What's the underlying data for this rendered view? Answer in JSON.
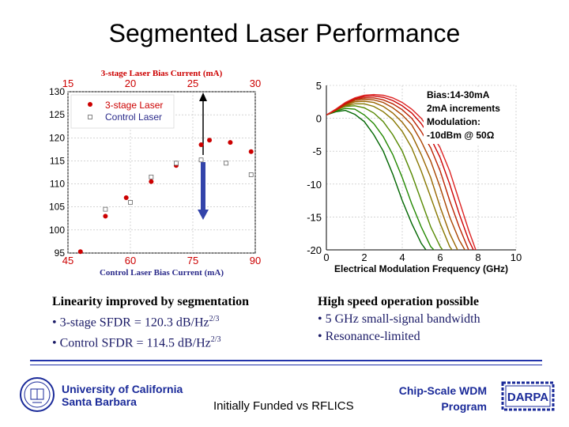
{
  "title": "Segmented Laser Performance",
  "left_text": {
    "heading": "Linearity improved by segmentation",
    "bullet1": "• 3-stage SFDR = 120.3 dB/Hz",
    "bullet1_sup": "2/3",
    "bullet2": "• Control SFDR = 114.5 dB/Hz",
    "bullet2_sup": "2/3"
  },
  "right_text": {
    "heading": "High speed operation possible",
    "bullet1": "• 5 GHz small-signal bandwidth",
    "bullet2": "• Resonance-limited"
  },
  "footer": {
    "left_line1": "University of California",
    "left_line2": "Santa Barbara",
    "center": "Initially Funded vs RFLICS",
    "right_line1": "Chip-Scale WDM",
    "right_line2": "Program",
    "logo_text": "DARPA"
  },
  "colors": {
    "marker": "#cc0000",
    "axis_text_red": "#cc0000",
    "footer_blue": "#1a2a99",
    "curve_colors": [
      "#006600",
      "#228800",
      "#558800",
      "#887700",
      "#996600",
      "#aa4400",
      "#bb2200",
      "#cc0000",
      "#dd2222"
    ]
  },
  "chart_data": [
    {
      "type": "scatter",
      "title": "3-stage Laser Bias Current (mA)",
      "xlabel": "Control Laser Bias Current (mA)",
      "ylabel": "",
      "xlim": [
        45,
        90
      ],
      "ylim": [
        95,
        130
      ],
      "x_ticks": [
        45,
        60,
        75,
        90
      ],
      "top_xlim": [
        15,
        30
      ],
      "top_x_ticks": [
        15,
        20,
        25,
        30
      ],
      "y_ticks": [
        95,
        100,
        105,
        110,
        115,
        120,
        125,
        130
      ],
      "grid": true,
      "legend_position": "top-left",
      "series": [
        {
          "name": "3-stage Laser",
          "marker": "filled-circle",
          "x": [
            48,
            54,
            59,
            65,
            71,
            77,
            79,
            84,
            89
          ],
          "y": [
            95.3,
            103,
            107,
            110.5,
            114,
            118.5,
            119.5,
            119,
            117
          ]
        },
        {
          "name": "Control Laser",
          "marker": "open-square",
          "x": [
            54,
            60,
            65,
            71,
            77,
            83,
            89
          ],
          "y": [
            104.5,
            106,
            111.5,
            114.5,
            115.2,
            114.5,
            112
          ]
        }
      ]
    },
    {
      "type": "line",
      "title": "",
      "xlabel": "Electrical Modulation Frequency (GHz)",
      "ylabel": "",
      "xlim": [
        0,
        10
      ],
      "ylim": [
        -20,
        5
      ],
      "x_ticks": [
        0,
        2,
        4,
        6,
        8,
        10
      ],
      "y_ticks": [
        5,
        0,
        -5,
        -10,
        -15,
        -20
      ],
      "grid": true,
      "legend_position": "top-right",
      "annotation": [
        "Bias:14-30mA",
        "2mA increments",
        "Modulation:",
        "-10dBm @ 50Ω"
      ],
      "series": [
        {
          "x": [
            0,
            0.5,
            1,
            1.5,
            2,
            2.5,
            3,
            3.5,
            4,
            4.5,
            5,
            5.5,
            6
          ],
          "y": [
            0.5,
            1.0,
            1.2,
            0.6,
            -0.5,
            -2.5,
            -5,
            -8.5,
            -12.5,
            -16,
            -19,
            -21,
            -22
          ]
        },
        {
          "x": [
            0,
            0.5,
            1,
            1.5,
            2,
            2.5,
            3,
            3.5,
            4,
            4.5,
            5,
            5.5,
            6,
            6.5
          ],
          "y": [
            0.5,
            1.1,
            1.5,
            1.4,
            0.5,
            -0.8,
            -2.8,
            -5.5,
            -9,
            -13,
            -16.5,
            -19.5,
            -21,
            -22
          ]
        },
        {
          "x": [
            0,
            0.5,
            1,
            1.5,
            2,
            2.5,
            3,
            3.5,
            4,
            4.5,
            5,
            5.5,
            6,
            6.5,
            7
          ],
          "y": [
            0.5,
            1.2,
            1.8,
            1.9,
            1.6,
            0.8,
            -0.5,
            -2.5,
            -5,
            -8.5,
            -12.5,
            -16.5,
            -19.5,
            -21.5,
            -22
          ]
        },
        {
          "x": [
            0,
            0.5,
            1,
            1.5,
            2,
            2.5,
            3,
            3.5,
            4,
            4.5,
            5,
            5.5,
            6,
            6.5,
            7,
            7.5
          ],
          "y": [
            0.5,
            1.2,
            1.9,
            2.2,
            2.2,
            1.8,
            1.0,
            -0.2,
            -2,
            -4.5,
            -8,
            -12,
            -16,
            -19.5,
            -21.5,
            -22
          ]
        },
        {
          "x": [
            0,
            0.5,
            1,
            1.5,
            2,
            2.5,
            3,
            3.5,
            4,
            4.5,
            5,
            5.5,
            6,
            6.5,
            7,
            7.5
          ],
          "y": [
            0.5,
            1.2,
            2.0,
            2.5,
            2.6,
            2.4,
            1.8,
            0.8,
            -0.6,
            -2.5,
            -5.5,
            -9,
            -13.5,
            -17.5,
            -20.5,
            -22
          ]
        },
        {
          "x": [
            0,
            0.5,
            1,
            1.5,
            2,
            2.5,
            3,
            3.5,
            4,
            4.5,
            5,
            5.5,
            6,
            6.5,
            7,
            7.5,
            8
          ],
          "y": [
            0.5,
            1.2,
            2.1,
            2.7,
            2.9,
            2.8,
            2.4,
            1.6,
            0.5,
            -1,
            -3.5,
            -6.5,
            -10.5,
            -15,
            -18.5,
            -21,
            -22
          ]
        },
        {
          "x": [
            0,
            0.5,
            1,
            1.5,
            2,
            2.5,
            3,
            3.5,
            4,
            4.5,
            5,
            5.5,
            6,
            6.5,
            7,
            7.5,
            8
          ],
          "y": [
            0.5,
            1.3,
            2.2,
            2.9,
            3.1,
            3.1,
            2.8,
            2.2,
            1.3,
            0,
            -2,
            -4.5,
            -8,
            -12.5,
            -16.5,
            -20,
            -22
          ]
        },
        {
          "x": [
            0,
            0.5,
            1,
            1.5,
            2,
            2.5,
            3,
            3.5,
            4,
            4.5,
            5,
            5.5,
            6,
            6.5,
            7,
            7.5,
            8
          ],
          "y": [
            0.5,
            1.3,
            2.3,
            3.0,
            3.3,
            3.4,
            3.2,
            2.7,
            1.9,
            0.8,
            -0.8,
            -3,
            -6,
            -10,
            -14.5,
            -18.5,
            -21.5
          ]
        },
        {
          "x": [
            0,
            0.5,
            1,
            1.5,
            2,
            2.5,
            3,
            3.5,
            4,
            4.5,
            5,
            5.5,
            6,
            6.5,
            7,
            7.5,
            8
          ],
          "y": [
            0.5,
            1.4,
            2.4,
            3.1,
            3.5,
            3.6,
            3.5,
            3.1,
            2.4,
            1.4,
            0,
            -2,
            -4.5,
            -8,
            -12.5,
            -17,
            -21
          ]
        }
      ]
    }
  ]
}
